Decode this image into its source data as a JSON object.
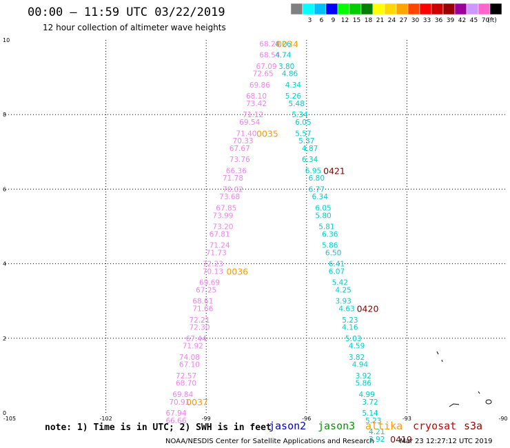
{
  "header": {
    "title": "00:00 – 11:59 UTC 03/22/2019",
    "subtitle": "12 hour collection of altimeter wave heights"
  },
  "colorbar": {
    "unit": "(ft)",
    "bins": [
      {
        "label": "",
        "color": "#808080"
      },
      {
        "label": "3",
        "color": "#00ffff"
      },
      {
        "label": "6",
        "color": "#00bfff"
      },
      {
        "label": "9",
        "color": "#0000ff"
      },
      {
        "label": "12",
        "color": "#00ff00"
      },
      {
        "label": "15",
        "color": "#00cc00"
      },
      {
        "label": "18",
        "color": "#008000"
      },
      {
        "label": "21",
        "color": "#ffff00"
      },
      {
        "label": "24",
        "color": "#ffd700"
      },
      {
        "label": "27",
        "color": "#ffa500"
      },
      {
        "label": "30",
        "color": "#ff4500"
      },
      {
        "label": "33",
        "color": "#ff0000"
      },
      {
        "label": "36",
        "color": "#cc0000"
      },
      {
        "label": "39",
        "color": "#990000"
      },
      {
        "label": "42",
        "color": "#990099"
      },
      {
        "label": "45",
        "color": "#cc99ff"
      },
      {
        "label": "70",
        "color": "#ff66cc"
      },
      {
        "label": "",
        "color": "#000000"
      }
    ]
  },
  "footer": {
    "note": "note: 1) Time is in UTC; 2) SWH is in feet",
    "credit": "NOAA/NESDIS Center for Satellite Applications and Research",
    "timestamp": "Mar 23 12:27:12 UTC 2019"
  },
  "legend": [
    {
      "name": "jason2",
      "color": "#0000cc"
    },
    {
      "name": "jason3",
      "color": "#009900"
    },
    {
      "name": "altika",
      "color": "#ff9900"
    },
    {
      "name": "cryosat",
      "color": "#cc0000"
    },
    {
      "name": "s3a",
      "color": "#990000"
    }
  ],
  "chart_data": {
    "type": "scatter",
    "xlim": [
      -105,
      -90
    ],
    "ylim": [
      0,
      10
    ],
    "x_ticks": [
      -105,
      -102,
      -99,
      -96,
      -93,
      -90
    ],
    "x_tick_labels": [
      "-105",
      "-102",
      "-99",
      "-96",
      "-93",
      "-90"
    ],
    "y_ticks": [
      0,
      2,
      4,
      6,
      8,
      10
    ],
    "y_tick_labels": [
      "0",
      "2",
      "4",
      "6",
      "8",
      "10"
    ],
    "grid": true,
    "series": [
      {
        "color": "#ee82ee",
        "points": [
          {
            "x": -97.1,
            "y": 9.9,
            "label": "68.20"
          },
          {
            "x": -97.1,
            "y": 9.6,
            "label": "68.54"
          },
          {
            "x": -97.2,
            "y": 9.3,
            "label": "67.09"
          },
          {
            "x": -97.3,
            "y": 9.1,
            "label": "72.65"
          },
          {
            "x": -97.4,
            "y": 8.8,
            "label": "69.86"
          },
          {
            "x": -97.5,
            "y": 8.5,
            "label": "68.10"
          },
          {
            "x": -97.5,
            "y": 8.3,
            "label": "73.42"
          },
          {
            "x": -97.6,
            "y": 8.0,
            "label": "71.12"
          },
          {
            "x": -97.7,
            "y": 7.8,
            "label": "69.54"
          },
          {
            "x": -97.8,
            "y": 7.5,
            "label": "71.40"
          },
          {
            "x": -97.9,
            "y": 7.3,
            "label": "70.33"
          },
          {
            "x": -98.0,
            "y": 7.1,
            "label": "67.67"
          },
          {
            "x": -98.0,
            "y": 6.8,
            "label": "73.76"
          },
          {
            "x": -98.1,
            "y": 6.5,
            "label": "66.36"
          },
          {
            "x": -98.2,
            "y": 6.3,
            "label": "71.78"
          },
          {
            "x": -98.2,
            "y": 6.0,
            "label": "70.02"
          },
          {
            "x": -98.3,
            "y": 5.8,
            "label": "73.68"
          },
          {
            "x": -98.4,
            "y": 5.5,
            "label": "67.85"
          },
          {
            "x": -98.5,
            "y": 5.3,
            "label": "73.99"
          },
          {
            "x": -98.5,
            "y": 5.0,
            "label": "73.20"
          },
          {
            "x": -98.6,
            "y": 4.8,
            "label": "67.81"
          },
          {
            "x": -98.6,
            "y": 4.5,
            "label": "71.24"
          },
          {
            "x": -98.7,
            "y": 4.3,
            "label": "71.73"
          },
          {
            "x": -98.8,
            "y": 4.0,
            "label": "72.23"
          },
          {
            "x": -98.8,
            "y": 3.8,
            "label": "70.13"
          },
          {
            "x": -98.9,
            "y": 3.5,
            "label": "69.69"
          },
          {
            "x": -99.0,
            "y": 3.3,
            "label": "67.25"
          },
          {
            "x": -99.1,
            "y": 3.0,
            "label": "68.61"
          },
          {
            "x": -99.1,
            "y": 2.8,
            "label": "71.66"
          },
          {
            "x": -99.2,
            "y": 2.5,
            "label": "72.21"
          },
          {
            "x": -99.2,
            "y": 2.3,
            "label": "72.30"
          },
          {
            "x": -99.3,
            "y": 2.0,
            "label": "67.44"
          },
          {
            "x": -99.4,
            "y": 1.8,
            "label": "71.92"
          },
          {
            "x": -99.5,
            "y": 1.5,
            "label": "74.08"
          },
          {
            "x": -99.5,
            "y": 1.3,
            "label": "67.10"
          },
          {
            "x": -99.6,
            "y": 1.0,
            "label": "72.57"
          },
          {
            "x": -99.6,
            "y": 0.8,
            "label": "68.70"
          },
          {
            "x": -99.7,
            "y": 0.5,
            "label": "69.84"
          },
          {
            "x": -99.8,
            "y": 0.3,
            "label": "70.91"
          },
          {
            "x": -99.9,
            "y": 0.0,
            "label": "67.94"
          },
          {
            "x": -99.9,
            "y": -0.2,
            "label": "66.66"
          }
        ]
      },
      {
        "color": "#00cccc",
        "points": [
          {
            "x": -96.7,
            "y": 9.9,
            "label": "4.26"
          },
          {
            "x": -96.7,
            "y": 9.6,
            "label": "4.74"
          },
          {
            "x": -96.6,
            "y": 9.3,
            "label": "3.80"
          },
          {
            "x": -96.5,
            "y": 9.1,
            "label": "4.86"
          },
          {
            "x": -96.4,
            "y": 8.8,
            "label": "4.34"
          },
          {
            "x": -96.4,
            "y": 8.5,
            "label": "5.26"
          },
          {
            "x": -96.3,
            "y": 8.3,
            "label": "5.48"
          },
          {
            "x": -96.2,
            "y": 8.0,
            "label": "5.34"
          },
          {
            "x": -96.1,
            "y": 7.8,
            "label": "6.05"
          },
          {
            "x": -96.1,
            "y": 7.5,
            "label": "5.57"
          },
          {
            "x": -96.0,
            "y": 7.3,
            "label": "5.37"
          },
          {
            "x": -95.9,
            "y": 7.1,
            "label": "4.87"
          },
          {
            "x": -95.9,
            "y": 6.8,
            "label": "6.34"
          },
          {
            "x": -95.8,
            "y": 6.5,
            "label": "6.95"
          },
          {
            "x": -95.7,
            "y": 6.3,
            "label": "6.80"
          },
          {
            "x": -95.7,
            "y": 6.0,
            "label": "6.77"
          },
          {
            "x": -95.6,
            "y": 5.8,
            "label": "6.34"
          },
          {
            "x": -95.5,
            "y": 5.5,
            "label": "6.05"
          },
          {
            "x": -95.5,
            "y": 5.3,
            "label": "5.80"
          },
          {
            "x": -95.4,
            "y": 5.0,
            "label": "5.81"
          },
          {
            "x": -95.3,
            "y": 4.8,
            "label": "6.36"
          },
          {
            "x": -95.3,
            "y": 4.5,
            "label": "5.86"
          },
          {
            "x": -95.2,
            "y": 4.3,
            "label": "6.50"
          },
          {
            "x": -95.1,
            "y": 4.0,
            "label": "6.41"
          },
          {
            "x": -95.1,
            "y": 3.8,
            "label": "6.07"
          },
          {
            "x": -95.0,
            "y": 3.5,
            "label": "5.42"
          },
          {
            "x": -94.9,
            "y": 3.3,
            "label": "4.25"
          },
          {
            "x": -94.9,
            "y": 3.0,
            "label": "3.93"
          },
          {
            "x": -94.8,
            "y": 2.8,
            "label": "4.63"
          },
          {
            "x": -94.7,
            "y": 2.5,
            "label": "5.23"
          },
          {
            "x": -94.7,
            "y": 2.3,
            "label": "4.16"
          },
          {
            "x": -94.6,
            "y": 2.0,
            "label": "5.03"
          },
          {
            "x": -94.5,
            "y": 1.8,
            "label": "4.59"
          },
          {
            "x": -94.5,
            "y": 1.5,
            "label": "3.82"
          },
          {
            "x": -94.4,
            "y": 1.3,
            "label": "4.94"
          },
          {
            "x": -94.3,
            "y": 1.0,
            "label": "3.92"
          },
          {
            "x": -94.3,
            "y": 0.8,
            "label": "5.86"
          },
          {
            "x": -94.2,
            "y": 0.5,
            "label": "4.99"
          },
          {
            "x": -94.1,
            "y": 0.3,
            "label": "3.72"
          },
          {
            "x": -94.1,
            "y": 0.0,
            "label": "5.14"
          },
          {
            "x": -94.0,
            "y": -0.2,
            "label": "5.23"
          },
          {
            "x": -93.9,
            "y": -0.5,
            "label": "4.21"
          },
          {
            "x": -93.9,
            "y": -0.7,
            "label": "3.92"
          }
        ]
      }
    ],
    "annotations": [
      {
        "x": -96.9,
        "y": 9.9,
        "text": "0034",
        "color": "#ff9900"
      },
      {
        "x": -97.5,
        "y": 7.5,
        "text": "0035",
        "color": "#ff9900"
      },
      {
        "x": -98.4,
        "y": 3.8,
        "text": "0036",
        "color": "#ff9900"
      },
      {
        "x": -99.6,
        "y": 0.3,
        "text": "0037",
        "color": "#ff9900"
      },
      {
        "x": -95.5,
        "y": 6.5,
        "text": "0421",
        "color": "#800000"
      },
      {
        "x": -94.5,
        "y": 2.8,
        "text": "0420",
        "color": "#800000"
      },
      {
        "x": -93.5,
        "y": -0.7,
        "text": "0419",
        "color": "#800000"
      }
    ]
  }
}
